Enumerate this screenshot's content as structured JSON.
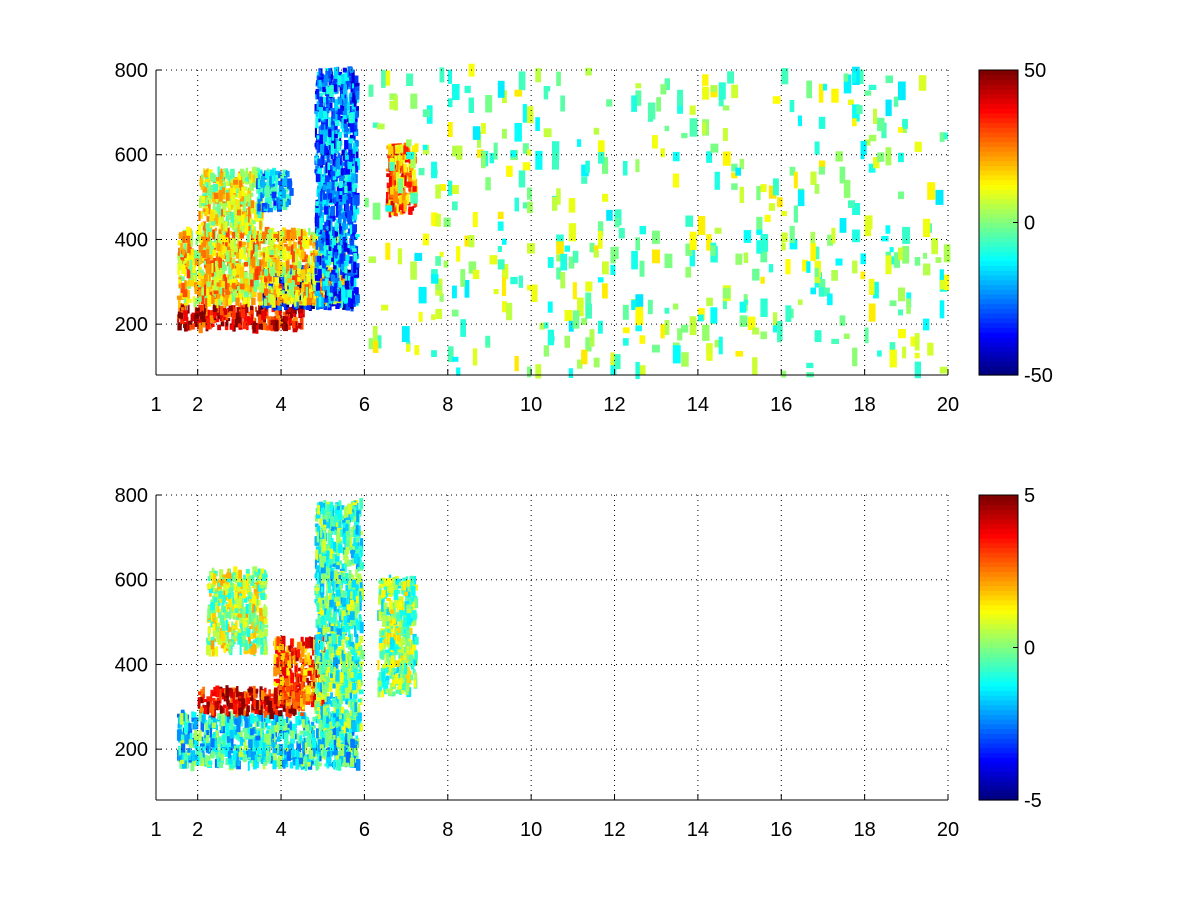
{
  "chart_data": [
    {
      "type": "heatmap",
      "title": "",
      "xlabel": "",
      "ylabel": "",
      "xlim": [
        1,
        20
      ],
      "ylim": [
        80,
        800
      ],
      "x_ticks": [
        1,
        2,
        4,
        6,
        8,
        10,
        12,
        14,
        16,
        18,
        20
      ],
      "y_ticks": [
        200,
        400,
        600,
        800
      ],
      "grid": true,
      "colorbar": {
        "min": -50,
        "max": 50,
        "ticks": [
          -50,
          0,
          50
        ],
        "colormap": "jet"
      },
      "description_regions": [
        {
          "x": [
            1.5,
            4.5
          ],
          "y": [
            190,
            240
          ],
          "value": 40
        },
        {
          "x": [
            3.5,
            5.7
          ],
          "y": [
            240,
            330
          ],
          "value": -40
        },
        {
          "x": [
            1.5,
            5.5
          ],
          "y": [
            250,
            420
          ],
          "value": 15
        },
        {
          "x": [
            4.8,
            5.8
          ],
          "y": [
            250,
            800
          ],
          "value": -25
        },
        {
          "x": [
            2,
            3.5
          ],
          "y": [
            420,
            560
          ],
          "value": 10
        },
        {
          "x": [
            3.4,
            4.2
          ],
          "y": [
            470,
            560
          ],
          "value": -20
        },
        {
          "x": [
            6.5,
            7.2
          ],
          "y": [
            460,
            620
          ],
          "value": 25
        },
        {
          "x": [
            6,
            20
          ],
          "y": [
            80,
            800
          ],
          "value": 0
        }
      ]
    },
    {
      "type": "heatmap",
      "title": "",
      "xlabel": "",
      "ylabel": "",
      "xlim": [
        1,
        20
      ],
      "ylim": [
        80,
        800
      ],
      "x_ticks": [
        1,
        2,
        4,
        6,
        8,
        10,
        12,
        14,
        16,
        18,
        20
      ],
      "y_ticks": [
        200,
        400,
        600,
        800
      ],
      "grid": true,
      "colorbar": {
        "min": -5,
        "max": 5,
        "ticks": [
          -5,
          0,
          5
        ],
        "colormap": "jet"
      },
      "description_regions": [
        {
          "x": [
            1.5,
            5.8
          ],
          "y": [
            160,
            280
          ],
          "value": -1
        },
        {
          "x": [
            2,
            4.5
          ],
          "y": [
            280,
            340
          ],
          "value": 4
        },
        {
          "x": [
            3.8,
            5
          ],
          "y": [
            300,
            460
          ],
          "value": 3
        },
        {
          "x": [
            4.8,
            5.9
          ],
          "y": [
            250,
            780
          ],
          "value": -0.5
        },
        {
          "x": [
            2.2,
            3.6
          ],
          "y": [
            430,
            620
          ],
          "value": 0.5
        },
        {
          "x": [
            6.3,
            7.2
          ],
          "y": [
            330,
            600
          ],
          "value": 0
        }
      ]
    }
  ]
}
